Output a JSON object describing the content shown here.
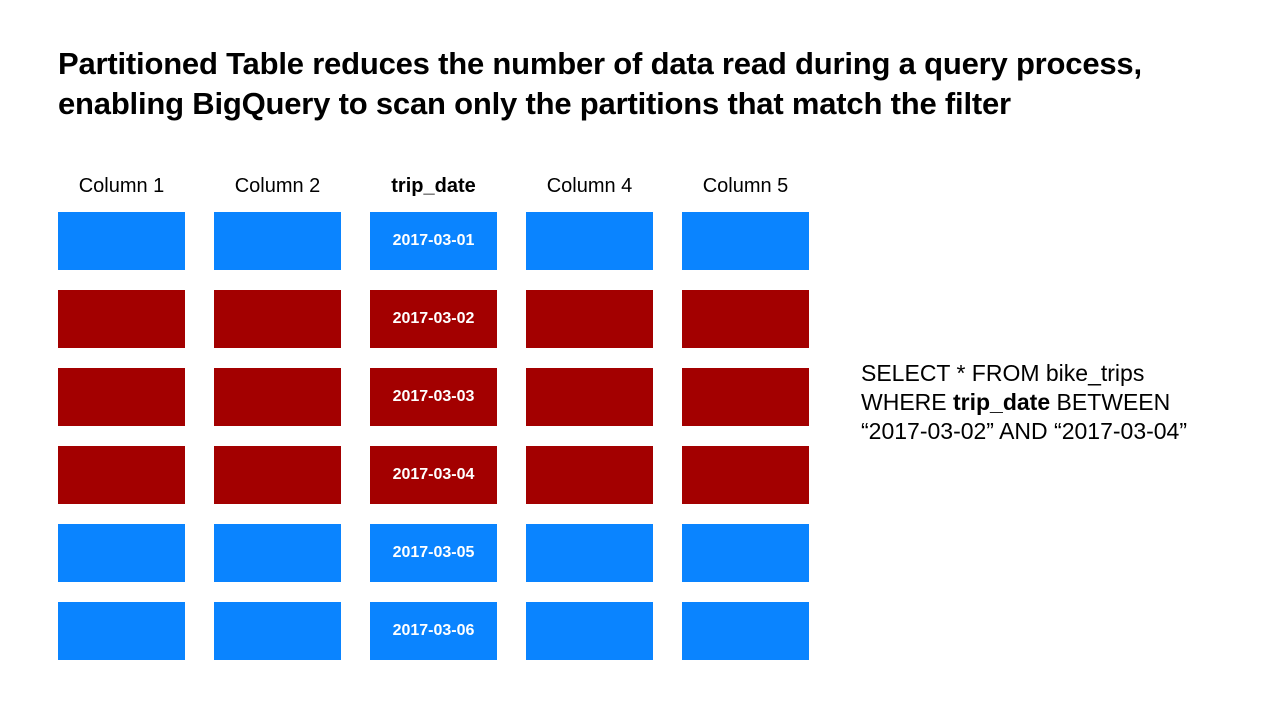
{
  "title": {
    "line1": "Partitioned Table reduces the number of data read during a query process,",
    "line2": "enabling BigQuery to scan only the partitions that match the filter"
  },
  "colors": {
    "unscanned": "#0a84ff",
    "scanned": "#a30000",
    "cell_text": "#ffffff"
  },
  "table": {
    "columns": [
      "Column 1",
      "Column 2",
      "trip_date",
      "Column 4",
      "Column 5"
    ],
    "partition_column": "trip_date",
    "rows": [
      {
        "trip_date": "2017-03-01",
        "state": "unscanned"
      },
      {
        "trip_date": "2017-03-02",
        "state": "scanned"
      },
      {
        "trip_date": "2017-03-03",
        "state": "scanned"
      },
      {
        "trip_date": "2017-03-04",
        "state": "scanned"
      },
      {
        "trip_date": "2017-03-05",
        "state": "unscanned"
      },
      {
        "trip_date": "2017-03-06",
        "state": "unscanned"
      }
    ]
  },
  "query": {
    "line1": "SELECT * FROM bike_trips",
    "line2_pre": "WHERE ",
    "line2_key": "trip_date",
    "line2_post": " BETWEEN",
    "line3": "“2017-03-02” AND “2017-03-04”"
  }
}
